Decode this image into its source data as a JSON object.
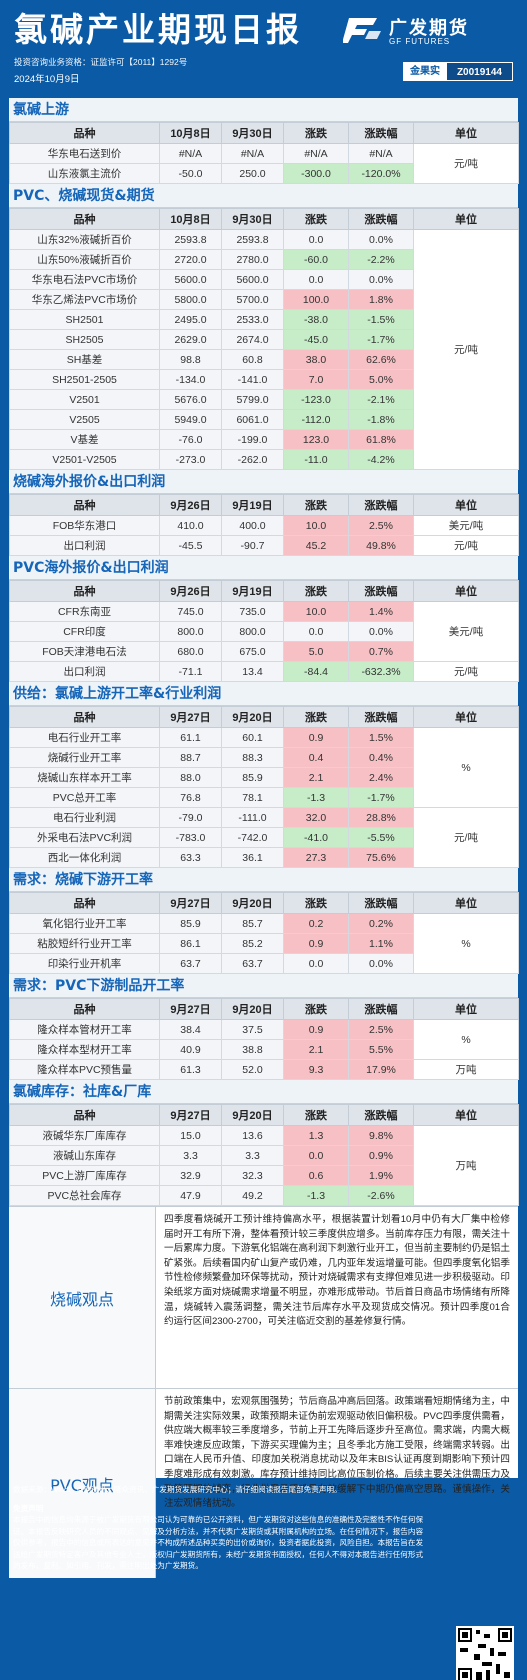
{
  "header": {
    "title": "氯碱产业期现日报",
    "license": "投资咨询业务资格：证监许可【2011】1292号",
    "date": "2024年10月9日",
    "logo_cn": "广发期货",
    "logo_en": "GF FUTURES",
    "cert_label": "金果实",
    "cert_code": "Z0019144"
  },
  "sections": [
    {
      "title": "氯碱上游",
      "headers": [
        "品种",
        "10月8日",
        "9月30日",
        "涨跌",
        "涨跌幅",
        "单位"
      ],
      "unit_groups": [
        {
          "start": 0,
          "span": 2,
          "unit": "元/吨"
        }
      ],
      "rows": [
        {
          "name": "华东电石送到价",
          "a": "#N/A",
          "b": "#N/A",
          "chg": "#N/A",
          "pct": "#N/A",
          "t": ""
        },
        {
          "name": "山东液氯主流价",
          "a": "-50.0",
          "b": "250.0",
          "chg": "-300.0",
          "pct": "-120.0%",
          "t": "dn"
        }
      ]
    },
    {
      "title": "PVC、烧碱现货&期货",
      "headers": [
        "品种",
        "10月8日",
        "9月30日",
        "涨跌",
        "涨跌幅",
        "单位"
      ],
      "unit_groups": [
        {
          "start": 0,
          "span": 13,
          "unit": "元/吨"
        }
      ],
      "rows": [
        {
          "name": "山东32%液碱折百价",
          "a": "2593.8",
          "b": "2593.8",
          "chg": "0.0",
          "pct": "0.0%",
          "t": ""
        },
        {
          "name": "山东50%液碱折百价",
          "a": "2720.0",
          "b": "2780.0",
          "chg": "-60.0",
          "pct": "-2.2%",
          "t": "dn"
        },
        {
          "name": "华东电石法PVC市场价",
          "a": "5600.0",
          "b": "5600.0",
          "chg": "0.0",
          "pct": "0.0%",
          "t": ""
        },
        {
          "name": "华东乙烯法PVC市场价",
          "a": "5800.0",
          "b": "5700.0",
          "chg": "100.0",
          "pct": "1.8%",
          "t": "up"
        },
        {
          "name": "SH2501",
          "a": "2495.0",
          "b": "2533.0",
          "chg": "-38.0",
          "pct": "-1.5%",
          "t": "dn"
        },
        {
          "name": "SH2505",
          "a": "2629.0",
          "b": "2674.0",
          "chg": "-45.0",
          "pct": "-1.7%",
          "t": "dn"
        },
        {
          "name": "SH基差",
          "a": "98.8",
          "b": "60.8",
          "chg": "38.0",
          "pct": "62.6%",
          "t": "up"
        },
        {
          "name": "SH2501-2505",
          "a": "-134.0",
          "b": "-141.0",
          "chg": "7.0",
          "pct": "5.0%",
          "t": "up"
        },
        {
          "name": "V2501",
          "a": "5676.0",
          "b": "5799.0",
          "chg": "-123.0",
          "pct": "-2.1%",
          "t": "dn"
        },
        {
          "name": "V2505",
          "a": "5949.0",
          "b": "6061.0",
          "chg": "-112.0",
          "pct": "-1.8%",
          "t": "dn"
        },
        {
          "name": "V基差",
          "a": "-76.0",
          "b": "-199.0",
          "chg": "123.0",
          "pct": "61.8%",
          "t": "up"
        },
        {
          "name": "V2501-V2505",
          "a": "-273.0",
          "b": "-262.0",
          "chg": "-11.0",
          "pct": "-4.2%",
          "t": "dn"
        }
      ]
    },
    {
      "title": "烧碱海外报价&出口利润",
      "headers": [
        "品种",
        "9月26日",
        "9月19日",
        "涨跌",
        "涨跌幅",
        "单位"
      ],
      "unit_groups": [
        {
          "start": 0,
          "span": 1,
          "unit": "美元/吨"
        },
        {
          "start": 1,
          "span": 1,
          "unit": "元/吨"
        }
      ],
      "rows": [
        {
          "name": "FOB华东港口",
          "a": "410.0",
          "b": "400.0",
          "chg": "10.0",
          "pct": "2.5%",
          "t": "up"
        },
        {
          "name": "出口利润",
          "a": "-45.5",
          "b": "-90.7",
          "chg": "45.2",
          "pct": "49.8%",
          "t": "up"
        }
      ]
    },
    {
      "title": "PVC海外报价&出口利润",
      "headers": [
        "品种",
        "9月26日",
        "9月19日",
        "涨跌",
        "涨跌幅",
        "单位"
      ],
      "unit_groups": [
        {
          "start": 0,
          "span": 3,
          "unit": "美元/吨"
        },
        {
          "start": 3,
          "span": 1,
          "unit": "元/吨"
        }
      ],
      "rows": [
        {
          "name": "CFR东南亚",
          "a": "745.0",
          "b": "735.0",
          "chg": "10.0",
          "pct": "1.4%",
          "t": "up"
        },
        {
          "name": "CFR印度",
          "a": "800.0",
          "b": "800.0",
          "chg": "0.0",
          "pct": "0.0%",
          "t": ""
        },
        {
          "name": "FOB天津港电石法",
          "a": "680.0",
          "b": "675.0",
          "chg": "5.0",
          "pct": "0.7%",
          "t": "up"
        },
        {
          "name": "出口利润",
          "a": "-71.1",
          "b": "13.4",
          "chg": "-84.4",
          "pct": "-632.3%",
          "t": "dn"
        }
      ]
    },
    {
      "title": "供给：氯碱上游开工率&行业利润",
      "headers": [
        "品种",
        "9月27日",
        "9月20日",
        "涨跌",
        "涨跌幅",
        "单位"
      ],
      "unit_groups": [
        {
          "start": 0,
          "span": 4,
          "unit": "%"
        },
        {
          "start": 4,
          "span": 3,
          "unit": "元/吨"
        }
      ],
      "rows": [
        {
          "name": "电石行业开工率",
          "a": "61.1",
          "b": "60.1",
          "chg": "0.9",
          "pct": "1.5%",
          "t": "up"
        },
        {
          "name": "烧碱行业开工率",
          "a": "88.7",
          "b": "88.3",
          "chg": "0.4",
          "pct": "0.4%",
          "t": "up"
        },
        {
          "name": "烧碱山东样本开工率",
          "a": "88.0",
          "b": "85.9",
          "chg": "2.1",
          "pct": "2.4%",
          "t": "up"
        },
        {
          "name": "PVC总开工率",
          "a": "76.8",
          "b": "78.1",
          "chg": "-1.3",
          "pct": "-1.7%",
          "t": "dn"
        },
        {
          "name": "电石行业利润",
          "a": "-79.0",
          "b": "-111.0",
          "chg": "32.0",
          "pct": "28.8%",
          "t": "up"
        },
        {
          "name": "外采电石法PVC利润",
          "a": "-783.0",
          "b": "-742.0",
          "chg": "-41.0",
          "pct": "-5.5%",
          "t": "dn"
        },
        {
          "name": "西北一体化利润",
          "a": "63.3",
          "b": "36.1",
          "chg": "27.3",
          "pct": "75.6%",
          "t": "up"
        }
      ]
    },
    {
      "title": "需求：烧碱下游开工率",
      "headers": [
        "品种",
        "9月27日",
        "9月20日",
        "涨跌",
        "涨跌幅",
        "单位"
      ],
      "unit_groups": [
        {
          "start": 0,
          "span": 3,
          "unit": "%"
        }
      ],
      "rows": [
        {
          "name": "氧化铝行业开工率",
          "a": "85.9",
          "b": "85.7",
          "chg": "0.2",
          "pct": "0.2%",
          "t": "up"
        },
        {
          "name": "粘胶短纤行业开工率",
          "a": "86.1",
          "b": "85.2",
          "chg": "0.9",
          "pct": "1.1%",
          "t": "up"
        },
        {
          "name": "印染行业开机率",
          "a": "63.7",
          "b": "63.7",
          "chg": "0.0",
          "pct": "0.0%",
          "t": ""
        }
      ]
    },
    {
      "title": "需求：PVC下游制品开工率",
      "headers": [
        "品种",
        "9月27日",
        "9月20日",
        "涨跌",
        "涨跌幅",
        "单位"
      ],
      "unit_groups": [
        {
          "start": 0,
          "span": 2,
          "unit": "%"
        },
        {
          "start": 2,
          "span": 1,
          "unit": "万吨"
        }
      ],
      "rows": [
        {
          "name": "隆众样本管材开工率",
          "a": "38.4",
          "b": "37.5",
          "chg": "0.9",
          "pct": "2.5%",
          "t": "up"
        },
        {
          "name": "隆众样本型材开工率",
          "a": "40.9",
          "b": "38.8",
          "chg": "2.1",
          "pct": "5.5%",
          "t": "up"
        },
        {
          "name": "隆众样本PVC预售量",
          "a": "61.3",
          "b": "52.0",
          "chg": "9.3",
          "pct": "17.9%",
          "t": "up"
        }
      ]
    },
    {
      "title": "氯碱库存：社库&厂库",
      "headers": [
        "品种",
        "9月27日",
        "9月20日",
        "涨跌",
        "涨跌幅",
        "单位"
      ],
      "unit_groups": [
        {
          "start": 0,
          "span": 4,
          "unit": "万吨"
        }
      ],
      "rows": [
        {
          "name": "液碱华东厂库库存",
          "a": "15.0",
          "b": "13.6",
          "chg": "1.3",
          "pct": "9.8%",
          "t": "up"
        },
        {
          "name": "液碱山东库存",
          "a": "3.3",
          "b": "3.3",
          "chg": "0.0",
          "pct": "0.9%",
          "t": "up"
        },
        {
          "name": "PVC上游厂库库存",
          "a": "32.9",
          "b": "32.3",
          "chg": "0.6",
          "pct": "1.9%",
          "t": "up"
        },
        {
          "name": "PVC总社会库存",
          "a": "47.9",
          "b": "49.2",
          "chg": "-1.3",
          "pct": "-2.6%",
          "t": "dn"
        }
      ]
    }
  ],
  "views": [
    {
      "label": "烧碱观点",
      "text": "四季度看烧碱开工预计维持偏高水平，根据装置计划看10月中仍有大厂集中检修届时开工有所下滑，整体看预计较三季度供应增多。当前库存压力有限，需关注十一后累库力度。下游氧化铝端在高利润下刺激行业开工，但当前主要制约仍是铝土矿紧张。后续看国内矿山复产或仍难，几内亚年发运增量可能。但四季度氧化铝季节性检修频繁叠加环保等扰动，预计对烧碱需求有支撑但难见进一步积极驱动。印染纸浆方面对烧碱需求增量不明显，亦难形成带动。节后首日商品市场情绪有所降温，烧碱转入震荡调整，需关注节后库存水平及现货成交情况。预计四季度01合约运行区间2300-2700，可关注临近交割的基差修复行情。"
    },
    {
      "label": "PVC观点",
      "text": "节前政策集中，宏观氛围强势；节后商品冲高后回落。政策端看短期情绪为主，中期需关注实际效果，政策预期未证伪前宏观驱动依旧偏积极。PVC四季度供需看，供应端大概率较三季度增多，节前上开工先降后逐步升至高位。需求端，内需大概率难快速反应政策，下游买买理偏为主；且冬季北方施工受限，终端需求转弱。出口端在人民币升值、印度加关税消息扰动以及年末BIS认证再度到期影响下预计四季度难形成有效刺激。库存预计维持同比高位压制价格。后续主要关注供需压力及政策预期的博弈，行业供需矛盾难见有效缓解下中期仍偏高空思路。谨慎操作，关注宏观情绪扰动。"
    }
  ],
  "footer": {
    "source": "数据来源：Wind、卓创资讯、隆众资讯、广发期货发展研究中心；请仔细阅读报告尾部免责声明。",
    "disclaimer_title": "免责声明",
    "disclaimer": "本报告中的信息均来源于被广发期货有限公司认为可靠的已公开资料，但广发期货对这些信息的准确性及完整性不作任何保证。本报告反映研究人员的不同观点、见解及分析方法，并不代表广发期货或其附属机构的立场。在任何情况下，报告内容仅供参考，报告中的信息或所表达的意见并不构成所述品种买卖的出价或询价，投资者据此投资，风险自担。本报告旨在发送给广发期货特定客户及其他专业人士，版权归广发期货所有，未经广发期货书面授权，任何人不得对本报告进行任何形式的发布、复制。如引用、刊发，需注明出处为广发期货。"
  }
}
